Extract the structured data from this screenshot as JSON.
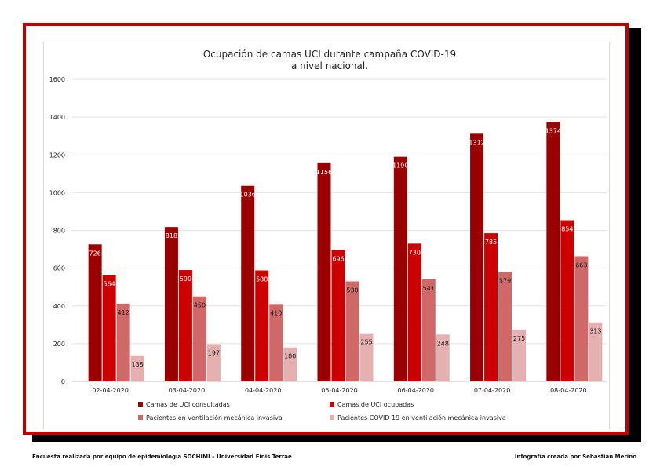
{
  "chart_data": {
    "type": "bar",
    "title": [
      "Ocupación de camas UCI durante campaña COVID-19",
      "a nivel nacional."
    ],
    "categories": [
      "02-04-2020",
      "03-04-2020",
      "04-04-2020",
      "05-04-2020",
      "06-04-2020",
      "07-04-2020",
      "08-04-2020"
    ],
    "series": [
      {
        "name": "Camas de UCI consultadas",
        "color": "#9b0000",
        "values": [
          726,
          818,
          1036,
          1156,
          1190,
          1312,
          1374
        ]
      },
      {
        "name": "Camas de UCI ocupadas",
        "color": "#cc0000",
        "values": [
          564,
          590,
          588,
          696,
          730,
          785,
          854
        ]
      },
      {
        "name": "Pacientes en ventilación mecánica invasiva",
        "color": "#d06868",
        "values": [
          412,
          450,
          410,
          530,
          541,
          579,
          663
        ]
      },
      {
        "name": "Pacientes COVID 19 en ventilación mecánica invasiva",
        "color": "#e4b0b0",
        "values": [
          138,
          197,
          180,
          255,
          248,
          275,
          313
        ]
      }
    ],
    "ylim": [
      0,
      1600
    ],
    "yticks": [
      0,
      200,
      400,
      600,
      800,
      1000,
      1200,
      1400,
      1600
    ],
    "grid": true,
    "legend_position": "bottom"
  },
  "footer": {
    "left": "Encuesta realizada por equipo de epidemiología SOCHIMI – Universidad Finis Terrae",
    "right": "Infografía creada por Sebastián Merino"
  }
}
